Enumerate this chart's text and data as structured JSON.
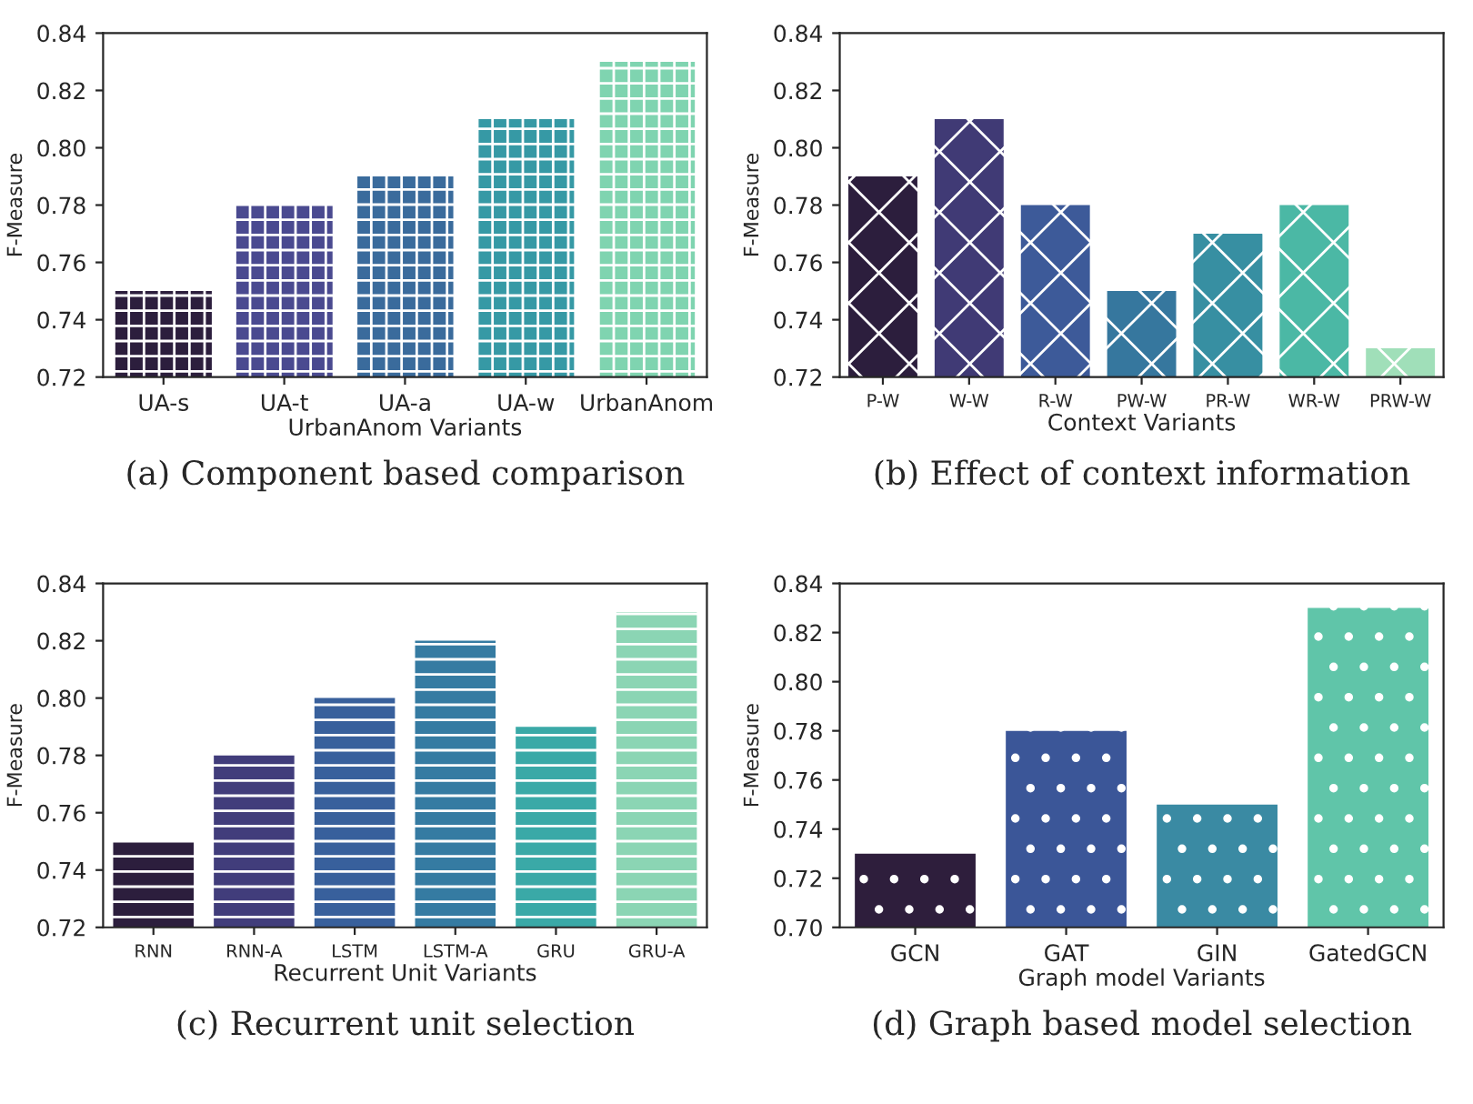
{
  "chart_data": [
    {
      "type": "bar",
      "categories": [
        "UA-s",
        "UA-t",
        "UA-a",
        "UA-w",
        "UrbanAnom"
      ],
      "values": [
        0.75,
        0.78,
        0.79,
        0.81,
        0.83
      ],
      "colors": [
        "#2c1e3d",
        "#4a4a90",
        "#3a6b9c",
        "#3699a5",
        "#7fd4b0"
      ],
      "xlabel": "UrbanAnom Variants",
      "ylabel": "F-Measure",
      "ylim": [
        0.72,
        0.84
      ],
      "yticks": [
        {
          "value": 0.72,
          "label": "0.72"
        },
        {
          "value": 0.74,
          "label": "0.74"
        },
        {
          "value": 0.76,
          "label": "0.76"
        },
        {
          "value": 0.78,
          "label": "0.78"
        },
        {
          "value": 0.8,
          "label": "0.80"
        },
        {
          "value": 0.82,
          "label": "0.82"
        },
        {
          "value": 0.84,
          "label": "0.84"
        }
      ],
      "annotations": [
        "(a) Component based comparison"
      ]
    },
    {
      "type": "bar",
      "categories": [
        "P-W",
        "W-W",
        "R-W",
        "PW-W",
        "PR-W",
        "WR-W",
        "PRW-W"
      ],
      "values": [
        0.79,
        0.81,
        0.78,
        0.75,
        0.77,
        0.78,
        0.73
      ],
      "colors": [
        "#2c1e3d",
        "#403a75",
        "#3d5a99",
        "#36779e",
        "#378fa2",
        "#4bb8a5",
        "#a0dfb9"
      ],
      "xlabel": "Context Variants",
      "ylabel": "F-Measure",
      "ylim": [
        0.72,
        0.84
      ],
      "yticks": [
        {
          "value": 0.72,
          "label": "0.72"
        },
        {
          "value": 0.74,
          "label": "0.74"
        },
        {
          "value": 0.76,
          "label": "0.76"
        },
        {
          "value": 0.78,
          "label": "0.78"
        },
        {
          "value": 0.8,
          "label": "0.80"
        },
        {
          "value": 0.82,
          "label": "0.82"
        },
        {
          "value": 0.84,
          "label": "0.84"
        }
      ],
      "annotations": [
        "(b) Effect of context information"
      ]
    },
    {
      "type": "bar",
      "categories": [
        "RNN",
        "RNN-A",
        "LSTM",
        "LSTM-A",
        "GRU",
        "GRU-A"
      ],
      "values": [
        0.75,
        0.78,
        0.8,
        0.82,
        0.79,
        0.83
      ],
      "colors": [
        "#2c1e3d",
        "#413d7b",
        "#38609c",
        "#357ba2",
        "#3aa9a7",
        "#8bd5b4"
      ],
      "xlabel": "Recurrent Unit Variants",
      "ylabel": "F-Measure",
      "ylim": [
        0.72,
        0.84
      ],
      "yticks": [
        {
          "value": 0.72,
          "label": "0.72"
        },
        {
          "value": 0.74,
          "label": "0.74"
        },
        {
          "value": 0.76,
          "label": "0.76"
        },
        {
          "value": 0.78,
          "label": "0.78"
        },
        {
          "value": 0.8,
          "label": "0.80"
        },
        {
          "value": 0.82,
          "label": "0.82"
        },
        {
          "value": 0.84,
          "label": "0.84"
        }
      ],
      "annotations": [
        "(c) Recurrent unit selection"
      ]
    },
    {
      "type": "bar",
      "categories": [
        "GCN",
        "GAT",
        "GIN",
        "GatedGCN"
      ],
      "values": [
        0.73,
        0.78,
        0.75,
        0.83
      ],
      "colors": [
        "#2e1e3c",
        "#3b5698",
        "#3a8aa3",
        "#60c5a9"
      ],
      "xlabel": "Graph model Variants",
      "ylabel": "F-Measure",
      "ylim": [
        0.7,
        0.84
      ],
      "yticks": [
        {
          "value": 0.7,
          "label": "0.70"
        },
        {
          "value": 0.72,
          "label": "0.72"
        },
        {
          "value": 0.74,
          "label": "0.74"
        },
        {
          "value": 0.76,
          "label": "0.76"
        },
        {
          "value": 0.78,
          "label": "0.78"
        },
        {
          "value": 0.8,
          "label": "0.80"
        },
        {
          "value": 0.82,
          "label": "0.82"
        },
        {
          "value": 0.84,
          "label": "0.84"
        }
      ],
      "annotations": [
        "(d) Graph based model selection"
      ]
    }
  ]
}
